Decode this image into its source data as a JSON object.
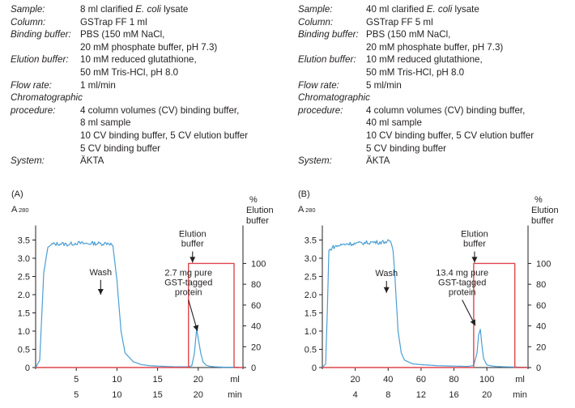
{
  "setup_a": [
    {
      "key": "Sample:",
      "lines": [
        "8 ml clarified E. coli lysate"
      ]
    },
    {
      "key": "Column:",
      "lines": [
        "GSTrap FF 1 ml"
      ]
    },
    {
      "key": "Binding buffer:",
      "lines": [
        "PBS (150 mM NaCl,",
        "20 mM phosphate buffer, pH 7.3)"
      ]
    },
    {
      "key": "Elution buffer:",
      "lines": [
        "10 mM reduced glutathione,",
        "50 mM Tris-HCl, pH 8.0"
      ]
    },
    {
      "key": "Flow rate:",
      "lines": [
        "1 ml/min"
      ]
    },
    {
      "key": "Chromatographic",
      "lines": [
        ""
      ]
    },
    {
      "key": "procedure:",
      "lines": [
        "        4 column volumes (CV) binding buffer,",
        "        8 ml sample",
        "        10 CV binding buffer, 5 CV elution buffer",
        "        5 CV binding buffer"
      ]
    },
    {
      "key": "System:",
      "lines": [
        "ÄKTA"
      ]
    }
  ],
  "setup_b": [
    {
      "key": "Sample:",
      "lines": [
        "40 ml clarified E. coli lysate"
      ]
    },
    {
      "key": "Column:",
      "lines": [
        "GSTrap FF 5 ml"
      ]
    },
    {
      "key": "Binding buffer:",
      "lines": [
        "PBS (150 mM NaCl,",
        "20 mM phosphate buffer, pH 7.3)"
      ]
    },
    {
      "key": "Elution buffer:",
      "lines": [
        "10 mM reduced glutathione,",
        "50 mM Tris-HCl, pH 8.0"
      ]
    },
    {
      "key": "Flow rate:",
      "lines": [
        "5 ml/min"
      ]
    },
    {
      "key": "Chromatographic",
      "lines": [
        ""
      ]
    },
    {
      "key": "procedure:",
      "lines": [
        "4 column volumes (CV) binding buffer,",
        "40 ml sample",
        "10 CV binding buffer, 5 CV elution buffer",
        "5 CV binding buffer"
      ]
    },
    {
      "key": "System:",
      "lines": [
        "ÄKTA"
      ]
    }
  ],
  "colors": {
    "absorbance": "#4a9fd4",
    "elution": "#e0474c",
    "axis": "#231f20"
  },
  "chart_data": [
    {
      "panel_label": "(A)",
      "type": "line",
      "ylabel": "A",
      "ylabel_sub": "280",
      "y2label": [
        "%",
        "Elution",
        "buffer"
      ],
      "ylim": [
        0,
        4.0
      ],
      "y_ticks": [
        0,
        0.5,
        1.0,
        1.5,
        2.0,
        2.5,
        3.0,
        3.5
      ],
      "y_tick_labels": [
        "0",
        "0.5",
        "1.0",
        "1.5",
        "2.0",
        "2.5",
        "3.0",
        "3.5"
      ],
      "y2lim": [
        0,
        140
      ],
      "y2_ticks": [
        0,
        20,
        40,
        60,
        80,
        100
      ],
      "xlim": [
        0,
        25.5
      ],
      "x_ticks": [
        5,
        10,
        15,
        20
      ],
      "x_tick_labels": [
        "5",
        "10",
        "15",
        "20"
      ],
      "x_unit": "ml",
      "x2_tick_labels": [
        "5",
        "10",
        "15",
        "20"
      ],
      "x2_unit": "min",
      "series": [
        {
          "key": "absorbance",
          "x": [
            0,
            0.5,
            1.0,
            1.5,
            2.0,
            3.0,
            4.0,
            5.0,
            6.0,
            7.0,
            8.0,
            9.0,
            9.5,
            10.0,
            10.5,
            11.0,
            12.0,
            13.0,
            14.0,
            15.0,
            16.0,
            17.0,
            18.0,
            18.8,
            19.2,
            19.5,
            19.8,
            20.0,
            20.3,
            20.6,
            21.0,
            21.5,
            22.0,
            23.0,
            24.0,
            25.0
          ],
          "y": [
            0,
            0.2,
            2.6,
            3.3,
            3.38,
            3.4,
            3.38,
            3.42,
            3.4,
            3.41,
            3.4,
            3.42,
            3.35,
            2.4,
            1.0,
            0.4,
            0.16,
            0.08,
            0.05,
            0.04,
            0.03,
            0.02,
            0.02,
            0.02,
            0.05,
            0.35,
            1.05,
            0.8,
            0.4,
            0.15,
            0.06,
            0.03,
            0.02,
            0.01,
            0.01,
            0.01
          ],
          "noise_range": [
            2.0,
            9.4
          ]
        },
        {
          "key": "elution",
          "x": [
            0,
            18.8,
            18.8,
            24.4,
            24.4,
            25.5
          ],
          "y": [
            0,
            0,
            100,
            100,
            0,
            0
          ]
        }
      ],
      "annotations": [
        {
          "text": [
            "Wash"
          ],
          "x": 8.0,
          "arrow_from": 2.45,
          "arrow_to": 2.0
        },
        {
          "text": [
            "Elution",
            "buffer"
          ],
          "x": 19.3,
          "arrow_from": 3.23,
          "arrow_to": 2.88
        },
        {
          "text": [
            "2.7 mg pure",
            "GST-tagged",
            "protein"
          ],
          "x": 18.8,
          "arrow_from": 1.9,
          "arrow_to": 1.0,
          "arrow_end_x": 19.9
        }
      ]
    },
    {
      "panel_label": "(B)",
      "type": "line",
      "ylabel": "A",
      "ylabel_sub": "280",
      "y2label": [
        "%",
        "Elution",
        "buffer"
      ],
      "ylim": [
        0,
        4.0
      ],
      "y_ticks": [
        0,
        0.5,
        1.0,
        1.5,
        2.0,
        2.5,
        3.0,
        3.5
      ],
      "y_tick_labels": [
        "0",
        "0.5",
        "1.0",
        "1.5",
        "2.0",
        "2.5",
        "3.0",
        "3.5"
      ],
      "y2lim": [
        0,
        140
      ],
      "y2_ticks": [
        0,
        20,
        40,
        60,
        80,
        100
      ],
      "xlim": [
        0,
        125
      ],
      "x_ticks": [
        20,
        40,
        60,
        80,
        100
      ],
      "x_tick_labels": [
        "20",
        "40",
        "60",
        "80",
        "100"
      ],
      "x_unit": "ml",
      "x2_tick_labels": [
        "4",
        "8",
        "12",
        "16",
        "20"
      ],
      "x2_unit": "min",
      "series": [
        {
          "key": "absorbance",
          "x": [
            0,
            2,
            3,
            4,
            6,
            10,
            15,
            20,
            25,
            30,
            35,
            40,
            42,
            43,
            44,
            45,
            46,
            48,
            50,
            55,
            60,
            70,
            80,
            88,
            90,
            92,
            94,
            95,
            96,
            97,
            98,
            100,
            105,
            110,
            120,
            125
          ],
          "y": [
            0,
            0.1,
            1.5,
            3.2,
            3.3,
            3.35,
            3.4,
            3.4,
            3.42,
            3.44,
            3.44,
            3.46,
            3.4,
            3.2,
            2.6,
            1.8,
            1.0,
            0.4,
            0.2,
            0.1,
            0.08,
            0.05,
            0.04,
            0.03,
            0.04,
            0.06,
            0.4,
            0.9,
            1.05,
            0.6,
            0.25,
            0.07,
            0.03,
            0.02,
            0.01,
            0.01
          ],
          "noise_range": [
            4,
            42
          ]
        },
        {
          "key": "elution",
          "x": [
            0,
            92,
            92,
            117,
            117,
            125
          ],
          "y": [
            0,
            0,
            100,
            100,
            0,
            0
          ]
        }
      ],
      "annotations": [
        {
          "text": [
            "Wash"
          ],
          "x": 39,
          "arrow_from": 2.42,
          "arrow_to": 2.05
        },
        {
          "text": [
            "Elution",
            "buffer"
          ],
          "x": 92.5,
          "arrow_from": 3.23,
          "arrow_to": 2.88
        },
        {
          "text": [
            "13.4 mg pure",
            "GST-tagged",
            "protein"
          ],
          "x": 85,
          "arrow_from": 1.9,
          "arrow_to": 1.15,
          "arrow_end_x": 93
        }
      ]
    }
  ]
}
